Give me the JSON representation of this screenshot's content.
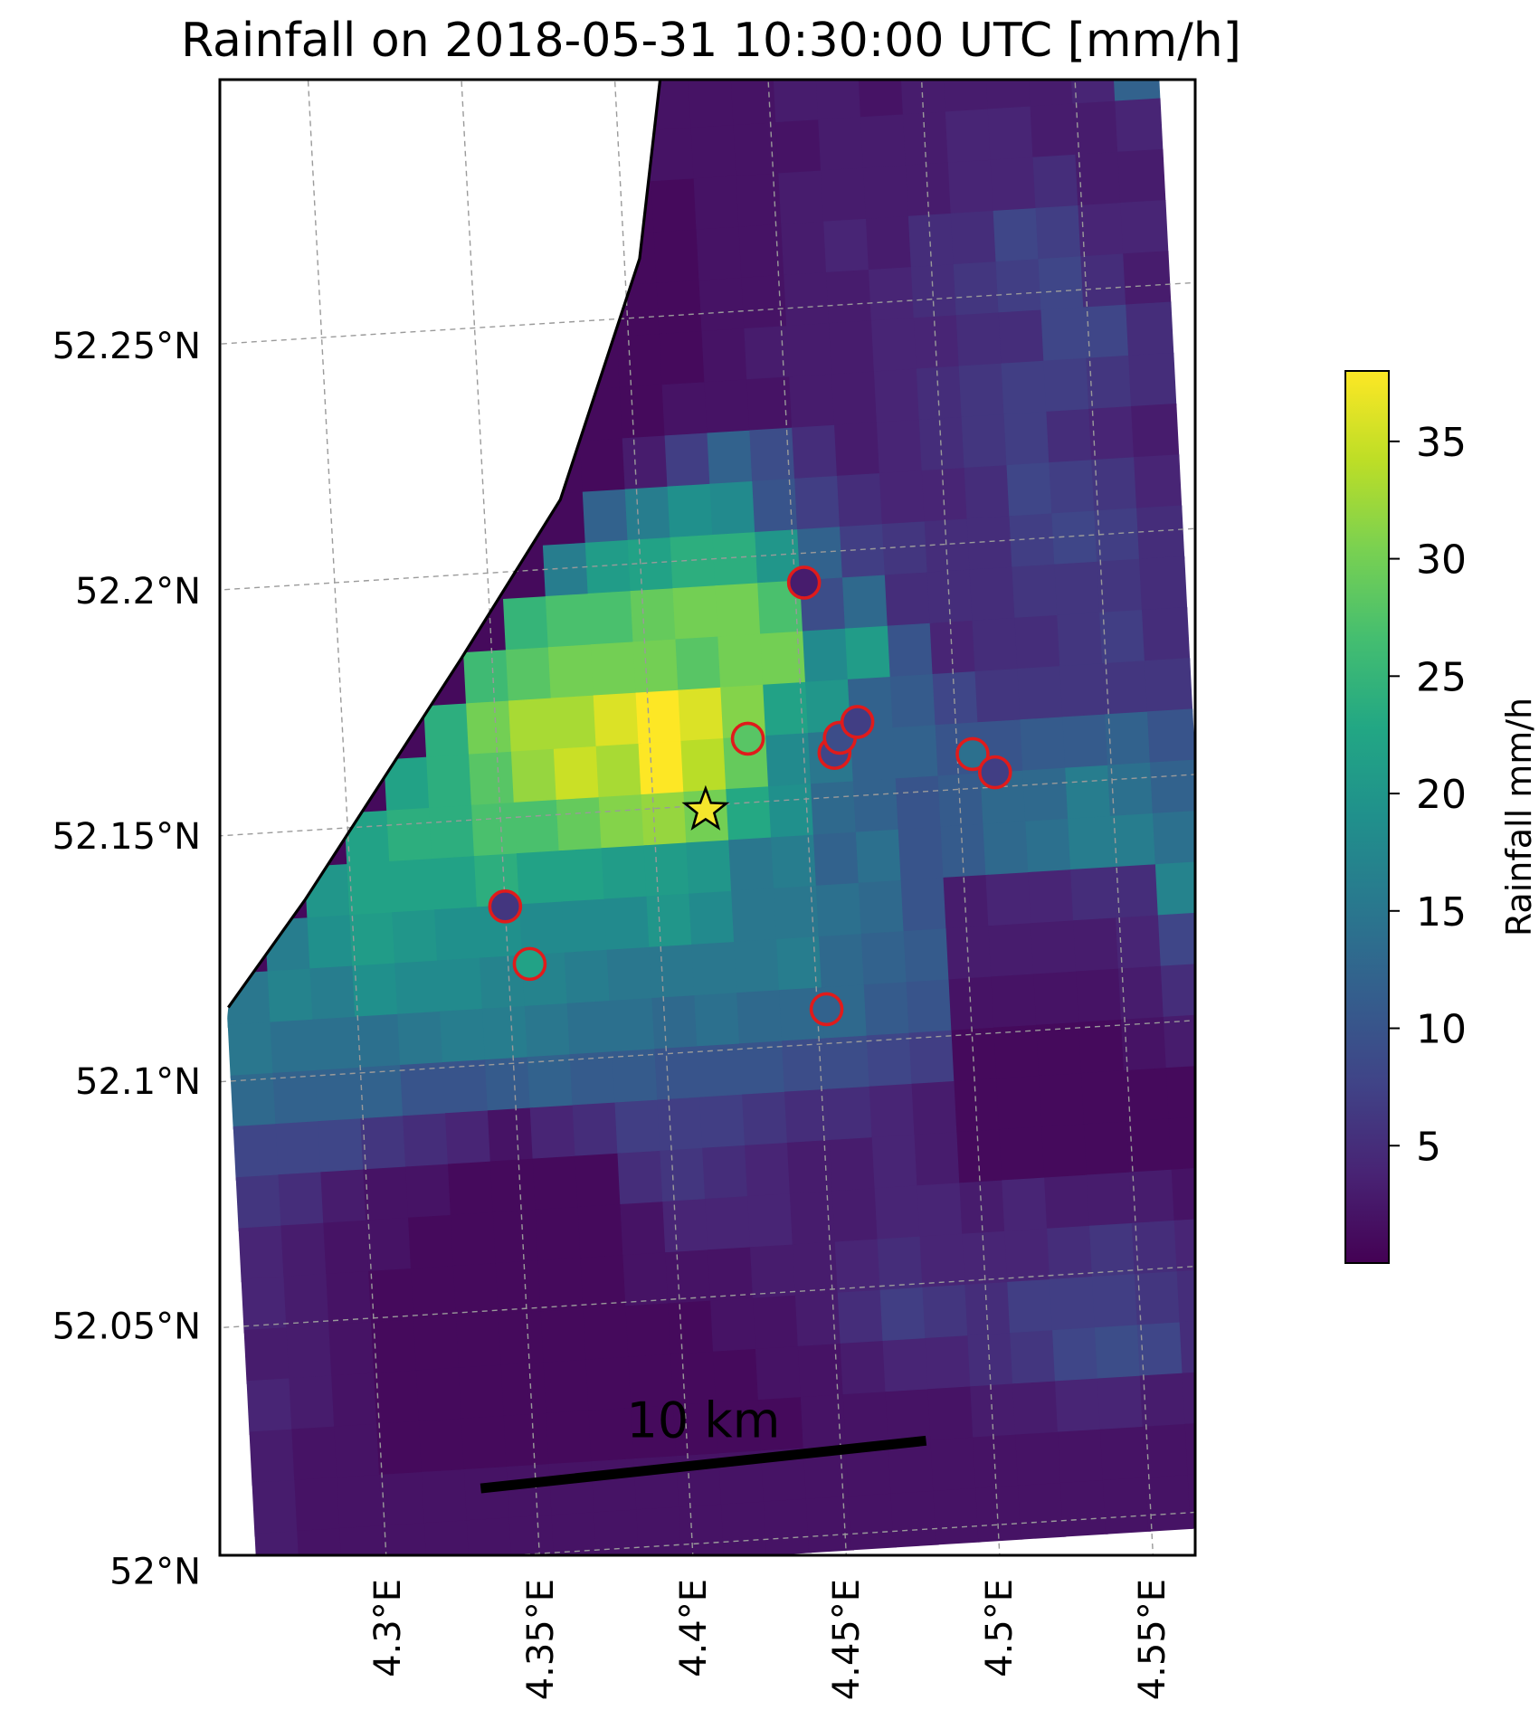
{
  "chart_data": {
    "type": "heatmap",
    "title": "Rainfall on 2018-05-31 10:30:00 UTC [mm/h]",
    "xlabel": "",
    "ylabel": "",
    "lon_ticks": [
      "4.3°E",
      "4.35°E",
      "4.4°E",
      "4.45°E",
      "4.5°E",
      "4.55°E"
    ],
    "lat_ticks": [
      "52°N",
      "52.05°N",
      "52.1°N",
      "52.15°N",
      "52.2°N",
      "52.25°N"
    ],
    "lon_tick_values": [
      4.3,
      4.35,
      4.4,
      4.45,
      4.5,
      4.55
    ],
    "lat_tick_values": [
      52.0,
      52.05,
      52.1,
      52.15,
      52.2,
      52.25
    ],
    "xlim": [
      4.258,
      4.577
    ],
    "ylim": [
      51.997,
      52.298
    ],
    "grid": true,
    "colormap": "viridis",
    "colorbar": {
      "label": "Rainfall mm/h",
      "range": [
        0,
        38
      ],
      "ticks": [
        5,
        10,
        15,
        20,
        25,
        30,
        35
      ],
      "tick_labels": [
        "5",
        "10",
        "15",
        "20",
        "25",
        "30",
        "35"
      ],
      "placement": "right"
    },
    "rainfall_grid": {
      "rows_from_top": [
        "000000000000001222224",
        "000000000000001111223",
        "000000000000001111223",
        "000000000000001224353",
        "000000000000011223452",
        "000000000000001234345",
        "000000000000012233445",
        "000000000000011223431",
        "000000000000012222353",
        "000000000000222344453",
        "000000000001222233332",
        "000000000011334554431",
        "000000000157776668732",
        "000000000777998834333",
        "000000007999999977244",
        "000000008899999996544",
        "000000079999990090323",
        "000000000000000000000",
        "000000000000000000000",
        "000000000000000000000",
        "000000000000000000000"
      ],
      "note": ""
    },
    "rain_cells_mm_h": [
      [
        1,
        1,
        1,
        1,
        1,
        1,
        1,
        1,
        1,
        1,
        2,
        2,
        2,
        2,
        3,
        3,
        2,
        3,
        3,
        3,
        3,
        4,
        12
      ],
      [
        1,
        1,
        1,
        1,
        1,
        1,
        1,
        1,
        1,
        1,
        2,
        2,
        2,
        2,
        2,
        3,
        3,
        3,
        4,
        4,
        3,
        3,
        4
      ],
      [
        1,
        1,
        1,
        1,
        1,
        1,
        1,
        1,
        1,
        1,
        1,
        1,
        2,
        2,
        3,
        3,
        3,
        3,
        4,
        4,
        5,
        3,
        3
      ],
      [
        1,
        1,
        1,
        1,
        1,
        1,
        1,
        1,
        1,
        1,
        1,
        1,
        2,
        2,
        3,
        4,
        3,
        5,
        5,
        8,
        7,
        4,
        4
      ],
      [
        1,
        1,
        1,
        1,
        1,
        1,
        1,
        1,
        1,
        1,
        1,
        1,
        2,
        2,
        3,
        3,
        4,
        5,
        6,
        7,
        8,
        5,
        3
      ],
      [
        1,
        1,
        1,
        1,
        1,
        1,
        1,
        1,
        1,
        1,
        1,
        1,
        2,
        3,
        3,
        3,
        4,
        4,
        5,
        5,
        8,
        8,
        5
      ],
      [
        1,
        1,
        1,
        1,
        1,
        1,
        1,
        1,
        1,
        1,
        1,
        2,
        2,
        2,
        3,
        3,
        4,
        5,
        6,
        7,
        7,
        6,
        5
      ],
      [
        1,
        1,
        1,
        1,
        1,
        1,
        1,
        1,
        1,
        1,
        3,
        7,
        12,
        9,
        5,
        3,
        4,
        5,
        6,
        7,
        5,
        4,
        3
      ],
      [
        1,
        1,
        1,
        1,
        1,
        1,
        1,
        1,
        1,
        12,
        16,
        19,
        18,
        10,
        7,
        5,
        4,
        4,
        5,
        8,
        7,
        6,
        4
      ],
      [
        1,
        1,
        1,
        1,
        1,
        1,
        1,
        1,
        16,
        21,
        22,
        24,
        24,
        20,
        12,
        7,
        6,
        5,
        5,
        7,
        8,
        7,
        5
      ],
      [
        1,
        1,
        1,
        1,
        1,
        1,
        1,
        25,
        27,
        27,
        29,
        30,
        30,
        27,
        9,
        13,
        5,
        5,
        5,
        6,
        6,
        6,
        5
      ],
      [
        1,
        1,
        1,
        1,
        1,
        1,
        26,
        28,
        30,
        30,
        30,
        28,
        30,
        30,
        18,
        21,
        10,
        4,
        5,
        5,
        6,
        7,
        5
      ],
      [
        1,
        1,
        1,
        1,
        1,
        24,
        30,
        33,
        33,
        36,
        38,
        36,
        31,
        22,
        20,
        12,
        11,
        8,
        6,
        6,
        6,
        6,
        6
      ],
      [
        1,
        1,
        1,
        1,
        22,
        24,
        28,
        32,
        35,
        33,
        38,
        34,
        29,
        18,
        15,
        12,
        12,
        10,
        10,
        11,
        11,
        12,
        10
      ],
      [
        1,
        1,
        1,
        22,
        24,
        24,
        27,
        27,
        29,
        31,
        32,
        30,
        23,
        19,
        13,
        12,
        10,
        11,
        13,
        13,
        16,
        14,
        12
      ],
      [
        1,
        1,
        20,
        22,
        22,
        22,
        24,
        22,
        22,
        21,
        21,
        20,
        15,
        16,
        12,
        14,
        10,
        11,
        13,
        14,
        16,
        16,
        14
      ],
      [
        1,
        16,
        19,
        21,
        20,
        19,
        19,
        18,
        18,
        18,
        20,
        18,
        15,
        15,
        14,
        13,
        10,
        3,
        4,
        4,
        5,
        5,
        17
      ],
      [
        15,
        17,
        16,
        19,
        18,
        18,
        17,
        17,
        16,
        15,
        15,
        15,
        15,
        16,
        13,
        12,
        11,
        3,
        3,
        3,
        3,
        4,
        8
      ],
      [
        15,
        14,
        14,
        14,
        15,
        16,
        16,
        15,
        14,
        14,
        13,
        14,
        13,
        13,
        13,
        11,
        10,
        2,
        2,
        2,
        2,
        3,
        5
      ],
      [
        13,
        12,
        12,
        12,
        10,
        10,
        11,
        12,
        11,
        11,
        10,
        10,
        10,
        9,
        9,
        8,
        7,
        1,
        1,
        1,
        1,
        2,
        3
      ],
      [
        8,
        8,
        8,
        6,
        5,
        4,
        2,
        4,
        5,
        7,
        7,
        7,
        6,
        5,
        5,
        4,
        3,
        1,
        1,
        1,
        1,
        1,
        1
      ],
      [
        6,
        5,
        3,
        2,
        2,
        1,
        1,
        1,
        1,
        5,
        6,
        5,
        4,
        3,
        3,
        4,
        3,
        1,
        1,
        1,
        1,
        1,
        1
      ],
      [
        4,
        3,
        2,
        2,
        1,
        1,
        1,
        1,
        1,
        2,
        4,
        4,
        4,
        3,
        3,
        4,
        4,
        3,
        4,
        3,
        3,
        3,
        2
      ],
      [
        4,
        3,
        2,
        1,
        1,
        1,
        1,
        1,
        1,
        2,
        2,
        2,
        3,
        3,
        4,
        5,
        4,
        4,
        4,
        5,
        6,
        5,
        4
      ],
      [
        3,
        3,
        2,
        1,
        1,
        1,
        1,
        1,
        1,
        1,
        1,
        2,
        2,
        3,
        5,
        7,
        6,
        5,
        7,
        7,
        7,
        6,
        5
      ],
      [
        4,
        3,
        2,
        1,
        1,
        1,
        1,
        1,
        1,
        1,
        1,
        1,
        2,
        2,
        3,
        4,
        4,
        5,
        6,
        8,
        9,
        8,
        5
      ],
      [
        3,
        2,
        2,
        1,
        1,
        1,
        1,
        1,
        1,
        1,
        1,
        1,
        1,
        2,
        2,
        2,
        2,
        3,
        3,
        4,
        4,
        3,
        3
      ],
      [
        3,
        2,
        2,
        2,
        2,
        2,
        2,
        2,
        2,
        2,
        2,
        2,
        2,
        2,
        2,
        2,
        2,
        2,
        2,
        2,
        2,
        2,
        2
      ],
      [
        3,
        2,
        2,
        2,
        2,
        2,
        2,
        2,
        2,
        2,
        2,
        2,
        2,
        2,
        2,
        2,
        2,
        2,
        2,
        2,
        2,
        2,
        2
      ]
    ],
    "rain_cells_first_lon_lat": [
      4.258,
      52.298
    ],
    "coastline_lonlat": [
      [
        4.258,
        52.115
      ],
      [
        4.285,
        52.136
      ],
      [
        4.34,
        52.183
      ],
      [
        4.375,
        52.214
      ],
      [
        4.405,
        52.262
      ],
      [
        4.415,
        52.299
      ]
    ],
    "gauges": [
      {
        "lon": 4.453,
        "lat": 52.194,
        "value_mm_h": 3
      },
      {
        "lon": 4.432,
        "lat": 52.163,
        "value_mm_h": 28
      },
      {
        "lon": 4.46,
        "lat": 52.159,
        "value_mm_h": 8
      },
      {
        "lon": 4.462,
        "lat": 52.162,
        "value_mm_h": 9
      },
      {
        "lon": 4.468,
        "lat": 52.165,
        "value_mm_h": 7
      },
      {
        "lon": 4.505,
        "lat": 52.157,
        "value_mm_h": 14
      },
      {
        "lon": 4.512,
        "lat": 52.153,
        "value_mm_h": 7
      },
      {
        "lon": 4.35,
        "lat": 52.132,
        "value_mm_h": 6
      },
      {
        "lon": 4.357,
        "lat": 52.12,
        "value_mm_h": 22
      },
      {
        "lon": 4.453,
        "lat": 52.107,
        "value_mm_h": 12
      }
    ],
    "star_marker": {
      "lon": 4.417,
      "lat": 52.149
    },
    "scale_bar": {
      "label": "10 km",
      "lon": [
        4.332,
        4.478
      ],
      "lat": [
        52.014,
        52.018
      ]
    }
  }
}
